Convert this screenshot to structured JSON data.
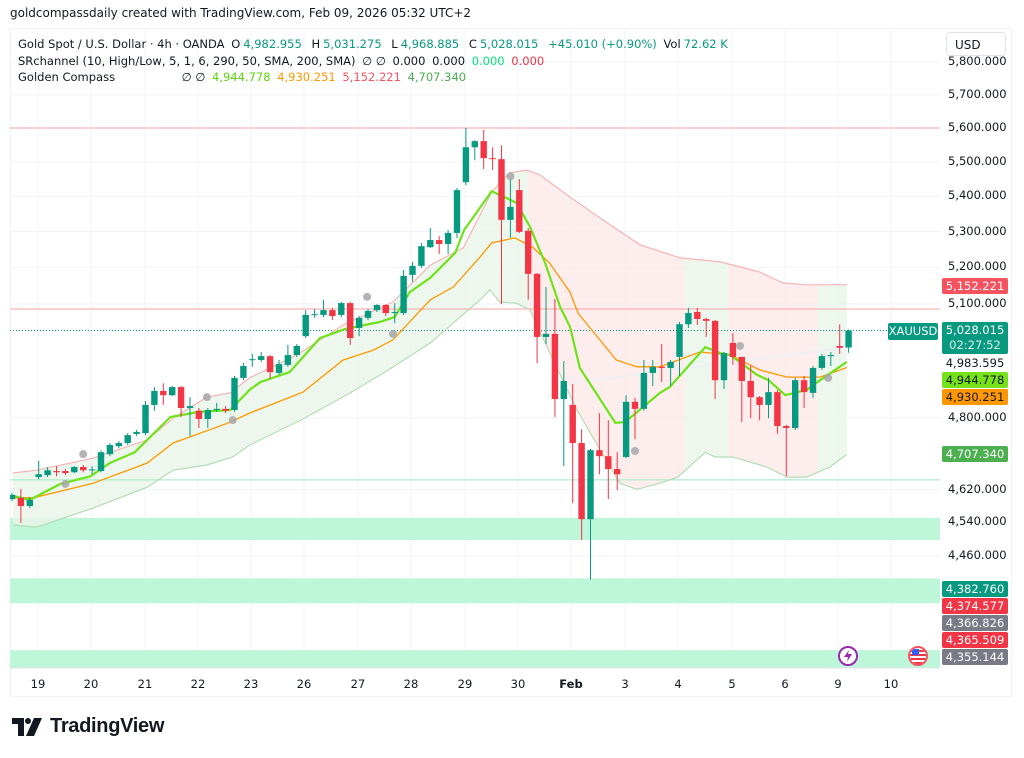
{
  "caption": "goldcompassdaily created with TradingView.com, Feb 09, 2026 05:32 UTC+2",
  "legend": {
    "symbol": "Gold Spot / U.S. Dollar · 4h · OANDA",
    "o_label": "O",
    "o": "4,982.955",
    "h_label": "H",
    "h": "5,031.275",
    "l_label": "L",
    "l": "4,968.885",
    "c_label": "C",
    "c": "5,028.015",
    "change": "+45.010 (+0.90%)",
    "vol_label": "Vol",
    "vol": "72.62 K",
    "sr_name": "SRchannel (10, High/Low, 5, 1, 6, 290, 50, SMA, 200, SMA)",
    "sr_icons": "∅ ∅",
    "sr_values": [
      "0.000",
      "0.000",
      "0.000",
      "0.000"
    ],
    "gc_name": "Golden Compass",
    "gc_icons": "∅ ∅",
    "gc_values": [
      "4,944.778",
      "4,930.251",
      "5,152.221",
      "4,707.340"
    ]
  },
  "currency_button": "USD",
  "symbol_tag": "XAUUSD",
  "countdown": "02:27:52",
  "price_tags": [
    {
      "text": "5,152.221",
      "color": "#f7525f"
    },
    {
      "text": "5,028.015",
      "color": "#089981"
    },
    {
      "text": "4,983.595",
      "color": "none"
    },
    {
      "text": "4,944.778",
      "color": "#76e21a"
    },
    {
      "text": "4,930.251",
      "color": "#ff9800"
    },
    {
      "text": "4,707.340",
      "color": "#4caf50"
    },
    {
      "text": "4,382.760",
      "color": "#089981"
    },
    {
      "text": "4,374.577",
      "color": "#f23645"
    },
    {
      "text": "4,366.826",
      "color": "#787b86"
    },
    {
      "text": "4,365.509",
      "color": "#f23645"
    },
    {
      "text": "4,355.144",
      "color": "#787b86"
    }
  ],
  "events": [
    {
      "icon": "lightning-icon",
      "color": "#9c27b0"
    },
    {
      "icon": "us-flag-icon",
      "color": "#f23645"
    }
  ],
  "logo": "TradingView",
  "colors": {
    "up": "#089981",
    "down": "#f23645",
    "fast_line": "#6fe31a",
    "slow_line": "#ff9800",
    "upper_band": "#f7b4b4",
    "lower_band": "#b5dcb6",
    "zone": "#b9f5d6",
    "marker": "#a6a6ab"
  },
  "chart_data": {
    "type": "candlestick",
    "interval": "4h",
    "y_scale": "log",
    "ylim": [
      4200,
      5830
    ],
    "y_ticks": [
      5800,
      5700,
      5600,
      5500,
      5400,
      5300,
      5200,
      5100,
      4800,
      4620,
      4540,
      4460
    ],
    "y_tick_labels": [
      "5,800.000",
      "5,700.000",
      "5,600.000",
      "5,500.000",
      "5,400.000",
      "5,300.000",
      "5,200.000",
      "5,100.000",
      "4,800.000",
      "4,620.000",
      "4,540.000",
      "4,460.000"
    ],
    "x_tick_labels": [
      "19",
      "20",
      "21",
      "22",
      "23",
      "26",
      "27",
      "28",
      "29",
      "30",
      "Feb",
      "3",
      "4",
      "5",
      "6",
      "9",
      "10"
    ],
    "grid": true,
    "candles_ohlc": [
      [
        4597,
        4612,
        4592,
        4607
      ],
      [
        4600,
        4622,
        4539,
        4580
      ],
      [
        4580,
        4602,
        4575,
        4595
      ],
      [
        4651,
        4691,
        4646,
        4658
      ],
      [
        4656,
        4676,
        4651,
        4668
      ],
      [
        4666,
        4678,
        4653,
        4663
      ],
      [
        4666,
        4671,
        4656,
        4661
      ],
      [
        4663,
        4678,
        4661,
        4676
      ],
      [
        4676,
        4681,
        4663,
        4668
      ],
      [
        4668,
        4678,
        4658,
        4670
      ],
      [
        4666,
        4718,
        4663,
        4713
      ],
      [
        4708,
        4736,
        4703,
        4731
      ],
      [
        4728,
        4741,
        4723,
        4736
      ],
      [
        4736,
        4761,
        4731,
        4756
      ],
      [
        4759,
        4769,
        4754,
        4764
      ],
      [
        4761,
        4843,
        4756,
        4833
      ],
      [
        4833,
        4879,
        4818,
        4869
      ],
      [
        4869,
        4889,
        4833,
        4858
      ],
      [
        4858,
        4882,
        4856,
        4879
      ],
      [
        4879,
        4882,
        4802,
        4825
      ],
      [
        4825,
        4853,
        4754,
        4830
      ],
      [
        4818,
        4825,
        4774,
        4797
      ],
      [
        4797,
        4825,
        4774,
        4820
      ],
      [
        4820,
        4838,
        4815,
        4823
      ],
      [
        4823,
        4830,
        4812,
        4818
      ],
      [
        4820,
        4908,
        4815,
        4903
      ],
      [
        4903,
        4942,
        4897,
        4934
      ],
      [
        4950,
        4966,
        4932,
        4952
      ],
      [
        4950,
        4971,
        4945,
        4960
      ],
      [
        4960,
        4963,
        4900,
        4918
      ],
      [
        4916,
        4950,
        4911,
        4939
      ],
      [
        4937,
        4990,
        4932,
        4963
      ],
      [
        4963,
        4992,
        4958,
        4987
      ],
      [
        5013,
        5083,
        5008,
        5070
      ],
      [
        5070,
        5086,
        5062,
        5072
      ],
      [
        5070,
        5111,
        5064,
        5083
      ],
      [
        5083,
        5089,
        5056,
        5067
      ],
      [
        5070,
        5105,
        5064,
        5102
      ],
      [
        5102,
        5105,
        4990,
        5008
      ],
      [
        5035,
        5067,
        5013,
        5062
      ],
      [
        5062,
        5086,
        5056,
        5081
      ],
      [
        5083,
        5099,
        5078,
        5097
      ],
      [
        5097,
        5099,
        5067,
        5075
      ],
      [
        5075,
        5102,
        5048,
        5078
      ],
      [
        5075,
        5193,
        5070,
        5176
      ],
      [
        5179,
        5215,
        5160,
        5204
      ],
      [
        5204,
        5268,
        5198,
        5259
      ],
      [
        5256,
        5310,
        5254,
        5276
      ],
      [
        5276,
        5287,
        5237,
        5265
      ],
      [
        5265,
        5304,
        5237,
        5296
      ],
      [
        5296,
        5424,
        5282,
        5418
      ],
      [
        5441,
        5600,
        5432,
        5543
      ],
      [
        5543,
        5564,
        5505,
        5561
      ],
      [
        5561,
        5594,
        5479,
        5511
      ],
      [
        5511,
        5543,
        5476,
        5508
      ],
      [
        5508,
        5549,
        5099,
        5333
      ],
      [
        5333,
        5453,
        5282,
        5370
      ],
      [
        5418,
        5450,
        5296,
        5299
      ],
      [
        5302,
        5310,
        5111,
        5182
      ],
      [
        5182,
        5184,
        4942,
        5011
      ],
      [
        5011,
        5146,
        4992,
        5019
      ],
      [
        5019,
        5113,
        4802,
        4848
      ],
      [
        4848,
        4947,
        4678,
        4895
      ],
      [
        4833,
        4887,
        4587,
        4736
      ],
      [
        4736,
        4771,
        4498,
        4548
      ],
      [
        4548,
        4721,
        4404,
        4718
      ],
      [
        4718,
        4812,
        4658,
        4703
      ],
      [
        4703,
        4794,
        4597,
        4671
      ],
      [
        4671,
        4713,
        4619,
        4658
      ],
      [
        4701,
        4858,
        4698,
        4841
      ],
      [
        4841,
        4851,
        4746,
        4823
      ],
      [
        4823,
        4950,
        4818,
        4916
      ],
      [
        4916,
        4950,
        4882,
        4932
      ],
      [
        4932,
        4992,
        4892,
        4929
      ],
      [
        4929,
        4950,
        4882,
        4945
      ],
      [
        4958,
        5051,
        4908,
        5045
      ],
      [
        5045,
        5089,
        5035,
        5075
      ],
      [
        5078,
        5089,
        5043,
        5059
      ],
      [
        5059,
        5062,
        5011,
        5054
      ],
      [
        5054,
        5056,
        4848,
        4897
      ],
      [
        4897,
        4971,
        4874,
        4968
      ],
      [
        4995,
        5021,
        4937,
        4958
      ],
      [
        4958,
        4958,
        4789,
        4895
      ],
      [
        4895,
        4937,
        4799,
        4853
      ],
      [
        4853,
        4856,
        4794,
        4833
      ],
      [
        4833,
        4903,
        4799,
        4866
      ],
      [
        4866,
        4872,
        4759,
        4779
      ],
      [
        4779,
        4782,
        4653,
        4774
      ],
      [
        4774,
        4903,
        4769,
        4897
      ],
      [
        4897,
        4908,
        4825,
        4866
      ],
      [
        4864,
        4934,
        4851,
        4929
      ],
      [
        4929,
        4966,
        4924,
        4960
      ],
      [
        4960,
        4971,
        4934,
        4963
      ],
      [
        4987,
        5045,
        4966,
        4982
      ],
      [
        4982.955,
        5031.275,
        4968.885,
        5028.015
      ]
    ],
    "lines": {
      "fast": [
        [
          1.1,
          4605
        ],
        [
          3,
          4595
        ],
        [
          6.4,
          4634
        ],
        [
          9.8,
          4653
        ],
        [
          12,
          4686
        ],
        [
          14.8,
          4713
        ],
        [
          18.8,
          4802
        ],
        [
          22,
          4815
        ],
        [
          25.5,
          4820
        ],
        [
          27.7,
          4872
        ],
        [
          28.9,
          4892
        ],
        [
          32.2,
          4918
        ],
        [
          35.6,
          5008
        ],
        [
          38.4,
          5032
        ],
        [
          42.3,
          5051
        ],
        [
          44,
          5064
        ],
        [
          45.7,
          5132
        ],
        [
          48,
          5171
        ],
        [
          50.8,
          5240
        ],
        [
          51.8,
          5304
        ],
        [
          54.9,
          5415
        ],
        [
          56.6,
          5395
        ],
        [
          57.7,
          5381
        ],
        [
          59.2,
          5313
        ],
        [
          60.9,
          5212
        ],
        [
          62.6,
          5091
        ],
        [
          63.7,
          5038
        ],
        [
          64.8,
          4929
        ],
        [
          68.8,
          4787
        ],
        [
          69.9,
          4789
        ],
        [
          70.4,
          4799
        ],
        [
          73.8,
          4864
        ],
        [
          74.9,
          4879
        ],
        [
          78.9,
          4984
        ],
        [
          80.6,
          4968
        ],
        [
          81.7,
          4963
        ],
        [
          84.7,
          4911
        ],
        [
          86,
          4897
        ],
        [
          87.9,
          4858
        ],
        [
          90.3,
          4872
        ],
        [
          91.8,
          4897
        ],
        [
          94.8,
          4944.778
        ]
      ],
      "slow": [
        [
          1.1,
          4600
        ],
        [
          3.4,
          4600
        ],
        [
          10.1,
          4636
        ],
        [
          16.2,
          4686
        ],
        [
          19.1,
          4736
        ],
        [
          25.2,
          4786
        ],
        [
          27.7,
          4812
        ],
        [
          33.7,
          4866
        ],
        [
          38.2,
          4950
        ],
        [
          41.6,
          4976
        ],
        [
          43.8,
          5003
        ],
        [
          48,
          5111
        ],
        [
          50.6,
          5146
        ],
        [
          53.6,
          5229
        ],
        [
          54.9,
          5268
        ],
        [
          57.5,
          5282
        ],
        [
          59.5,
          5256
        ],
        [
          61.4,
          5212
        ],
        [
          63.7,
          5132
        ],
        [
          64.6,
          5075
        ],
        [
          68.9,
          4950
        ],
        [
          71.2,
          4932
        ],
        [
          73.8,
          4932
        ],
        [
          78.3,
          4971
        ],
        [
          81.7,
          4963
        ],
        [
          85,
          4924
        ],
        [
          88.1,
          4905
        ],
        [
          91.8,
          4905
        ],
        [
          94.8,
          4930.251
        ]
      ],
      "upper": [
        [
          1.1,
          4661
        ],
        [
          3.8,
          4668
        ],
        [
          10.1,
          4698
        ],
        [
          16.2,
          4744
        ],
        [
          19.1,
          4799
        ],
        [
          22.9,
          4853
        ],
        [
          25.5,
          4864
        ],
        [
          27.7,
          4903
        ],
        [
          33,
          4963
        ],
        [
          38.2,
          5043
        ],
        [
          43.8,
          5105
        ],
        [
          48,
          5206
        ],
        [
          51.7,
          5254
        ],
        [
          54.9,
          5412
        ],
        [
          56.9,
          5468
        ],
        [
          58.9,
          5476
        ],
        [
          60.3,
          5462
        ],
        [
          63.7,
          5398
        ],
        [
          67.1,
          5338
        ],
        [
          71.6,
          5262
        ],
        [
          76.1,
          5226
        ],
        [
          80.6,
          5215
        ],
        [
          85,
          5187
        ],
        [
          87.6,
          5157
        ],
        [
          90.3,
          5152
        ],
        [
          94.8,
          5152.221
        ]
      ],
      "lower": [
        [
          1.1,
          4534
        ],
        [
          3.8,
          4529
        ],
        [
          10.1,
          4575
        ],
        [
          16.2,
          4626
        ],
        [
          19.1,
          4668
        ],
        [
          22.9,
          4681
        ],
        [
          25.8,
          4701
        ],
        [
          27.7,
          4731
        ],
        [
          33.7,
          4797
        ],
        [
          39,
          4864
        ],
        [
          43.3,
          4924
        ],
        [
          48,
          4995
        ],
        [
          53.6,
          5111
        ],
        [
          54.7,
          5138
        ],
        [
          55.8,
          5105
        ],
        [
          57.7,
          5102
        ],
        [
          59.2,
          5083
        ],
        [
          61.8,
          4950
        ],
        [
          64.5,
          4820
        ],
        [
          67.1,
          4718
        ],
        [
          69.3,
          4636
        ],
        [
          71.2,
          4621
        ],
        [
          73.8,
          4636
        ],
        [
          75.8,
          4651
        ],
        [
          78.9,
          4713
        ],
        [
          80,
          4701
        ],
        [
          82,
          4701
        ],
        [
          85.8,
          4676
        ],
        [
          88.1,
          4651
        ],
        [
          90.3,
          4651
        ],
        [
          92.9,
          4676
        ],
        [
          94.8,
          4707.34
        ]
      ],
      "faint": [
        [
          64,
          4890
        ],
        [
          95,
          4983.595
        ]
      ]
    },
    "trend_regions": [
      {
        "from": 1,
        "to": 59,
        "trend": "up"
      },
      {
        "from": 59,
        "to": 76.5,
        "trend": "down"
      },
      {
        "from": 76.5,
        "to": 81.5,
        "trend": "up"
      },
      {
        "from": 81.5,
        "to": 91.5,
        "trend": "down"
      },
      {
        "from": 91.5,
        "to": 95,
        "trend": "up"
      }
    ],
    "markers": [
      [
        7,
        4634
      ],
      [
        9,
        4708
      ],
      [
        22.9,
        4853
      ],
      [
        25.8,
        4794
      ],
      [
        40.9,
        5119
      ],
      [
        43.8,
        5019
      ],
      [
        57,
        5458
      ],
      [
        71,
        4716
      ],
      [
        82.8,
        4987
      ],
      [
        92.7,
        4903
      ]
    ],
    "horizontal_lines": [
      {
        "price": 5600,
        "color": "#f7a0a0"
      },
      {
        "price": 5086,
        "color": "#f7a0a0"
      },
      {
        "price": 4644,
        "color": "#9ee8c0"
      }
    ],
    "zones": [
      [
        4498,
        4551
      ],
      [
        4349,
        4407
      ],
      [
        4201,
        4242
      ]
    ],
    "last_price": 5028.015
  }
}
